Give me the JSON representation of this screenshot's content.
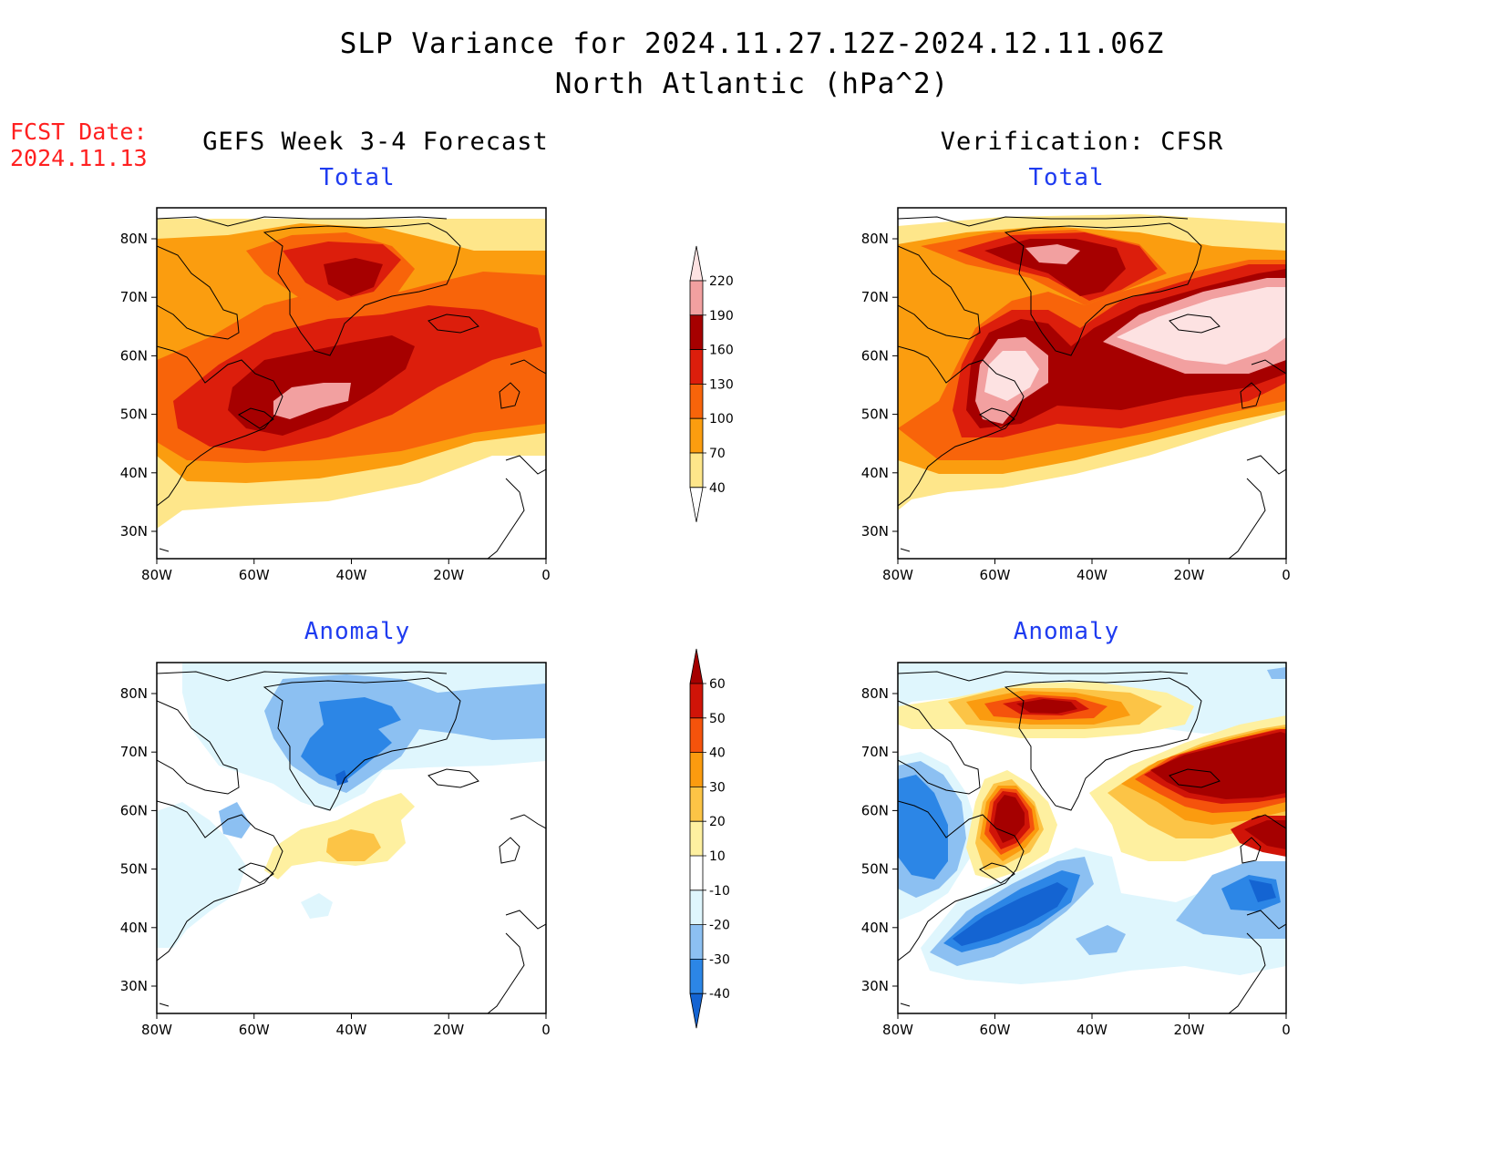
{
  "title": "SLP Variance for 2024.11.27.12Z-2024.12.11.06Z",
  "subtitle": "North Atlantic (hPa^2)",
  "fcst_date": {
    "label": "FCST Date:",
    "value": "2024.11.13"
  },
  "columns": {
    "left": "GEFS Week 3-4 Forecast",
    "right": "Verification: CFSR"
  },
  "panels": {
    "top_left": "Total",
    "top_right": "Total",
    "bottom_left": "Anomaly",
    "bottom_right": "Anomaly"
  },
  "axes": {
    "lon_ticks": [
      "80W",
      "60W",
      "40W",
      "20W",
      "0"
    ],
    "lat_ticks": [
      "80N",
      "70N",
      "60N",
      "50N",
      "40N",
      "30N"
    ]
  },
  "colorbars": {
    "total": {
      "levels": [
        "40",
        "70",
        "100",
        "130",
        "160",
        "190",
        "220"
      ],
      "colors": [
        "#fee68a",
        "#fb9d0f",
        "#f8640a",
        "#dc1e0c",
        "#a60000",
        "#f2a0a0",
        "#fde2e2"
      ]
    },
    "anomaly": {
      "levels": [
        "-40",
        "-30",
        "-20",
        "-10",
        "10",
        "20",
        "30",
        "40",
        "50",
        "60"
      ],
      "colors": [
        "#1464d2",
        "#2c86e6",
        "#8cc0f2",
        "#dff6fd",
        "#ffffff",
        "#fef0a0",
        "#fcc446",
        "#fb9b0f",
        "#f5530c",
        "#d01408",
        "#a50000"
      ]
    }
  }
}
